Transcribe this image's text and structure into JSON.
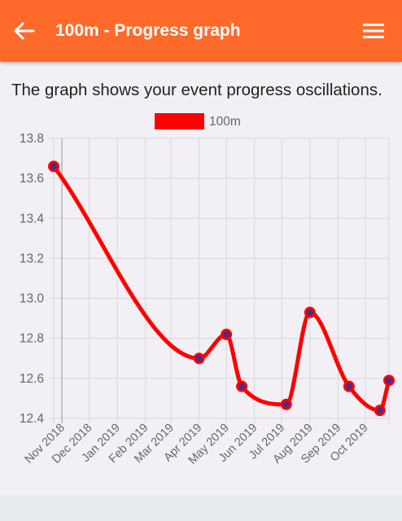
{
  "appbar": {
    "title": "100m - Progress graph",
    "back_icon": "arrow-left-icon",
    "menu_icon": "hamburger-menu-icon",
    "background": "#ff6a2b"
  },
  "subtitle": "The graph shows your event progress oscillations.",
  "chart_data": {
    "type": "line",
    "legend": {
      "label": "100m",
      "placement": "top-center"
    },
    "series": [
      {
        "name": "100m",
        "color": "#ff0000",
        "points": [
          {
            "x": "2018-10-23",
            "y": 13.66
          },
          {
            "x": "2019-04-01",
            "y": 12.7
          },
          {
            "x": "2019-05-01",
            "y": 12.82
          },
          {
            "x": "2019-05-18",
            "y": 12.56
          },
          {
            "x": "2019-07-06",
            "y": 12.47
          },
          {
            "x": "2019-08-01",
            "y": 12.93
          },
          {
            "x": "2019-09-13",
            "y": 12.56
          },
          {
            "x": "2019-10-17",
            "y": 12.44
          },
          {
            "x": "2019-10-27",
            "y": 12.59
          }
        ]
      }
    ],
    "x_ticks": [
      "Nov 2018",
      "Dec 2018",
      "Jan 2019",
      "Feb 2019",
      "Mar 2019",
      "Apr 2019",
      "May 2019",
      "Jun 2019",
      "Jul 2019",
      "Aug 2019",
      "Sep 2019",
      "Oct 2019"
    ],
    "x_tick_dates": [
      "2018-11-01",
      "2018-12-01",
      "2019-01-01",
      "2019-02-01",
      "2019-03-01",
      "2019-04-01",
      "2019-05-01",
      "2019-06-01",
      "2019-07-01",
      "2019-08-01",
      "2019-09-01",
      "2019-10-01"
    ],
    "xlim": [
      "2018-10-23",
      "2019-10-27"
    ],
    "y_ticks": [
      "13.8",
      "13.6",
      "13.4",
      "13.2",
      "13.0",
      "12.8",
      "12.6",
      "12.4"
    ],
    "ylim": [
      12.4,
      13.8
    ],
    "grid": true,
    "marker_color": "#4a2a8c"
  }
}
